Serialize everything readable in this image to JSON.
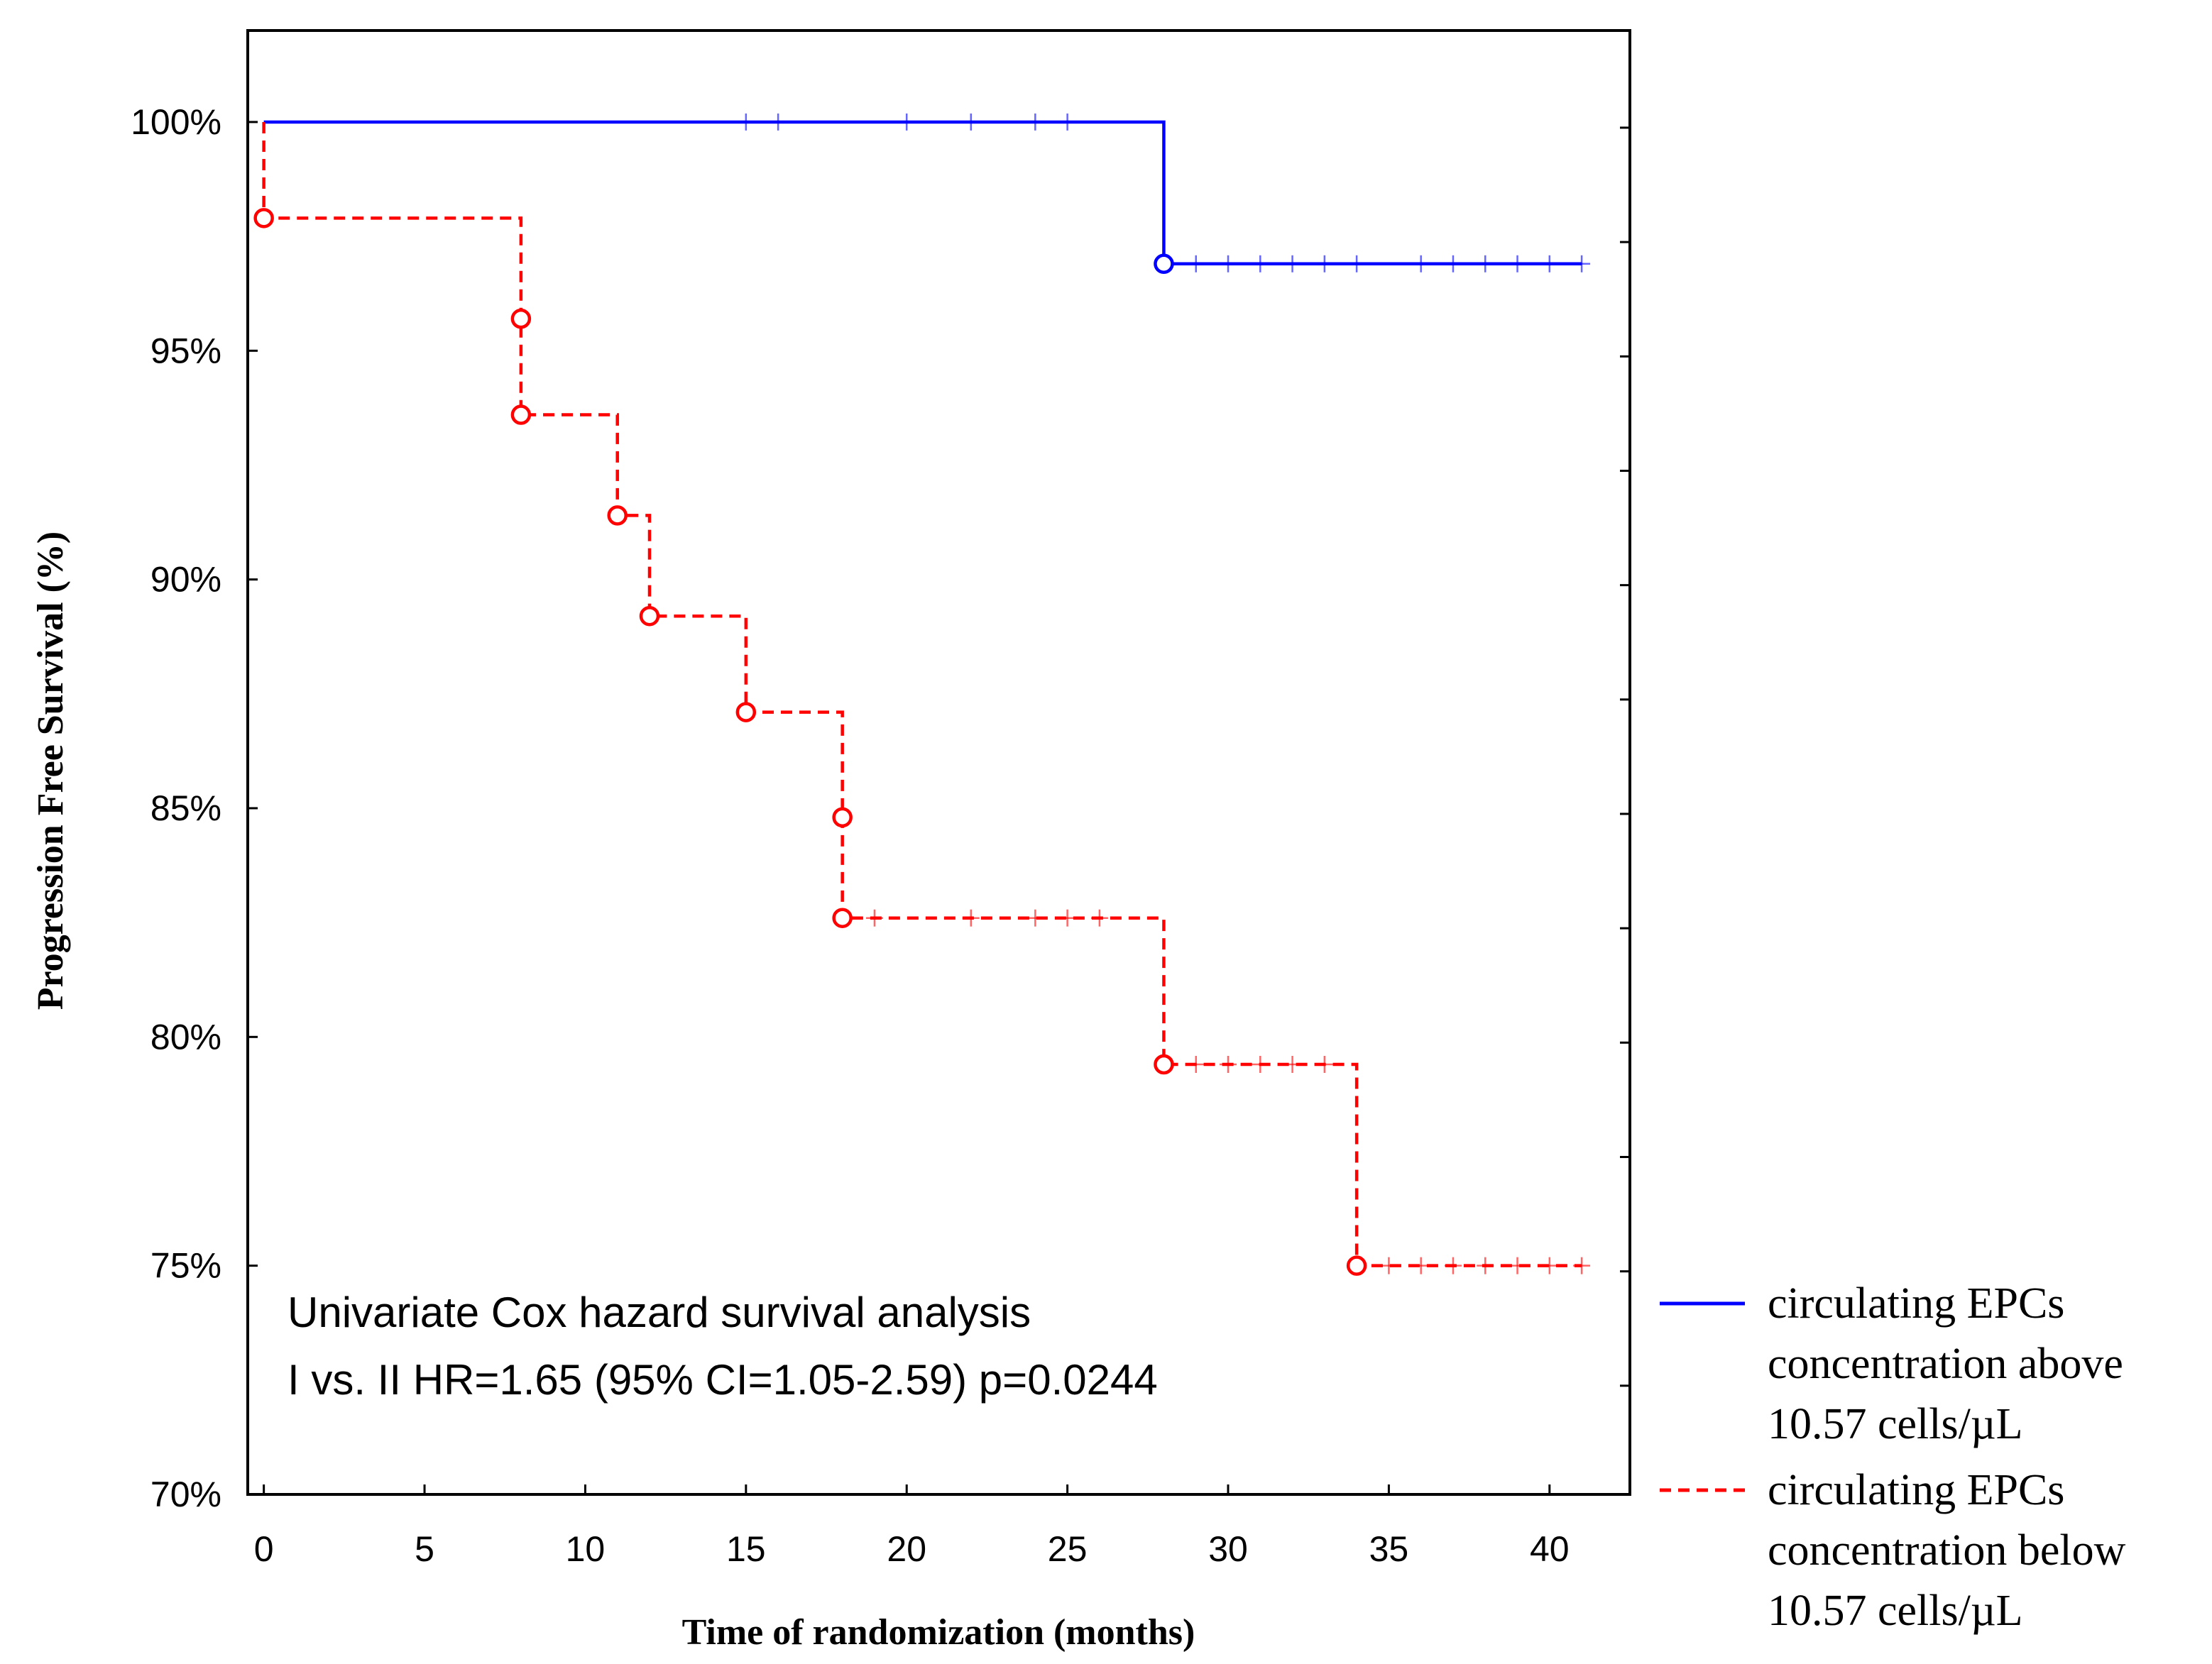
{
  "chart_data": {
    "type": "line",
    "subtype": "kaplan-meier",
    "title": "",
    "xlabel": "Time of randomization (months)",
    "ylabel": "Progression Free Survival (%)",
    "xlim": [
      -0.5,
      42.5
    ],
    "ylim": [
      70,
      102
    ],
    "xticks": [
      0,
      5,
      10,
      15,
      20,
      25,
      30,
      35,
      40
    ],
    "xtick_labels": [
      "0",
      "5",
      "10",
      "15",
      "20",
      "25",
      "30",
      "35",
      "40"
    ],
    "yticks": [
      70,
      75,
      80,
      85,
      90,
      95,
      100
    ],
    "ytick_labels": [
      "70%",
      "75%",
      "80%",
      "85%",
      "90%",
      "95%",
      "100%"
    ],
    "annotation": {
      "line1": "Univariate Cox hazard survival analysis",
      "line2": "I vs. II HR=1.65 (95% CI=1.05-2.59) p=0.0244"
    },
    "series": [
      {
        "name": "circulating EPCs concentration above 10.57 cells/µL",
        "legend_lines": [
          "circulating EPCs",
          "concentration above",
          "10.57 cells/µL"
        ],
        "color": "#0000ff",
        "dash": "solid",
        "steps": [
          [
            0,
            100
          ],
          [
            28,
            100
          ],
          [
            28,
            96.9
          ],
          [
            41,
            96.9
          ]
        ],
        "events": [
          [
            28,
            96.9
          ]
        ],
        "censored": [
          [
            15,
            100
          ],
          [
            16,
            100
          ],
          [
            20,
            100
          ],
          [
            22,
            100
          ],
          [
            24,
            100
          ],
          [
            25,
            100
          ],
          [
            29,
            96.9
          ],
          [
            30,
            96.9
          ],
          [
            31,
            96.9
          ],
          [
            32,
            96.9
          ],
          [
            33,
            96.9
          ],
          [
            34,
            96.9
          ],
          [
            36,
            96.9
          ],
          [
            37,
            96.9
          ],
          [
            38,
            96.9
          ],
          [
            39,
            96.9
          ],
          [
            40,
            96.9
          ],
          [
            41,
            96.9
          ]
        ]
      },
      {
        "name": "circulating EPCs concentration below 10.57 cells/µL",
        "legend_lines": [
          "circulating EPCs",
          "concentration below",
          "10.57 cells/µL"
        ],
        "color": "#ff0000",
        "dash": "dashed",
        "steps": [
          [
            0,
            100
          ],
          [
            0,
            97.9
          ],
          [
            8,
            97.9
          ],
          [
            8,
            93.6
          ],
          [
            11,
            93.6
          ],
          [
            11,
            91.4
          ],
          [
            12,
            91.4
          ],
          [
            12,
            89.2
          ],
          [
            15,
            89.2
          ],
          [
            15,
            87.1
          ],
          [
            18,
            87.1
          ],
          [
            18,
            82.6
          ],
          [
            28,
            82.6
          ],
          [
            28,
            79.4
          ],
          [
            34,
            79.4
          ],
          [
            34,
            75.0
          ],
          [
            41,
            75.0
          ]
        ],
        "events": [
          [
            0,
            97.9
          ],
          [
            8,
            95.7
          ],
          [
            8,
            93.6
          ],
          [
            11,
            91.4
          ],
          [
            12,
            89.2
          ],
          [
            15,
            87.1
          ],
          [
            18,
            84.8
          ],
          [
            18,
            82.6
          ],
          [
            28,
            79.4
          ],
          [
            34,
            75.0
          ]
        ],
        "censored": [
          [
            19,
            82.6
          ],
          [
            22,
            82.6
          ],
          [
            24,
            82.6
          ],
          [
            25,
            82.6
          ],
          [
            26,
            82.6
          ],
          [
            29,
            79.4
          ],
          [
            30,
            79.4
          ],
          [
            31,
            79.4
          ],
          [
            32,
            79.4
          ],
          [
            33,
            79.4
          ],
          [
            35,
            75.0
          ],
          [
            36,
            75.0
          ],
          [
            37,
            75.0
          ],
          [
            38,
            75.0
          ],
          [
            39,
            75.0
          ],
          [
            40,
            75.0
          ],
          [
            41,
            75.0
          ]
        ]
      }
    ],
    "legend_position": "right"
  }
}
